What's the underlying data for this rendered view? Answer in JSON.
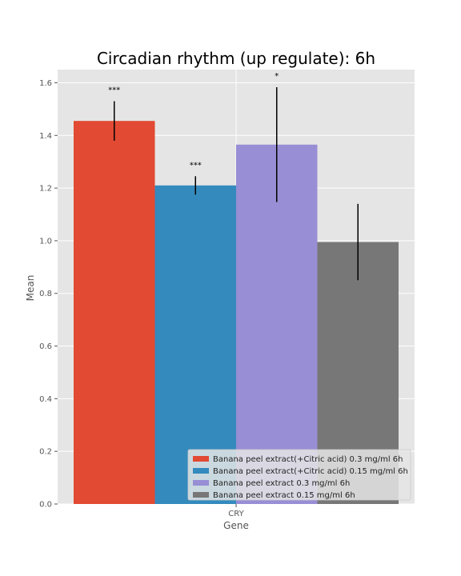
{
  "chart_data": {
    "type": "bar",
    "title": "Circadian rhythm (up regulate): 6h",
    "xlabel": "Gene",
    "ylabel": "Mean",
    "categories": [
      "CRY"
    ],
    "ylim": [
      0,
      1.65
    ],
    "yticks": [
      "0.0",
      "0.2",
      "0.4",
      "0.6",
      "0.8",
      "1.0",
      "1.2",
      "1.4",
      "1.6"
    ],
    "grid": true,
    "legend_position": "lower-right",
    "series": [
      {
        "name": "Banana peel extract(+Citric acid) 0.3 mg/ml 6h",
        "values": [
          1.455
        ],
        "error": [
          0.075
        ],
        "significance": "***",
        "color": "#E24A33"
      },
      {
        "name": "Banana peel extract(+Citric acid) 0.15 mg/ml 6h",
        "values": [
          1.21
        ],
        "error": [
          0.035
        ],
        "significance": "***",
        "color": "#348ABD"
      },
      {
        "name": "Banana peel extract 0.3 mg/ml 6h",
        "values": [
          1.365
        ],
        "error": [
          0.218
        ],
        "significance": "*",
        "color": "#988ED5"
      },
      {
        "name": "Banana peel extract 0.15 mg/ml 6h",
        "values": [
          0.995
        ],
        "error": [
          0.145
        ],
        "significance": "",
        "color": "#777777"
      }
    ]
  }
}
